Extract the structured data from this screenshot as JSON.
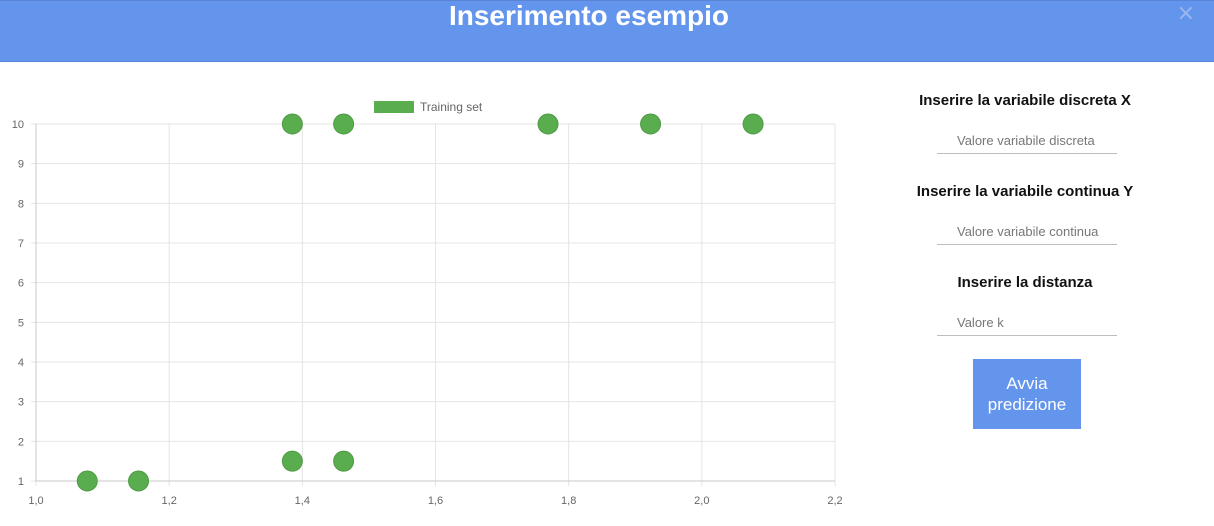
{
  "header": {
    "title": "Inserimento esempio",
    "close_label": "×",
    "color": "#6495ed"
  },
  "form": {
    "x_label": "Inserire la variabile discreta X",
    "x_placeholder": "Valore variabile discreta",
    "y_label": "Inserire la variabile continua Y",
    "y_placeholder": "Valore variabile continua",
    "k_label": "Inserire la distanza",
    "k_placeholder": "Valore k",
    "submit_label": "Avvia predizione"
  },
  "chart_data": {
    "type": "scatter",
    "series": [
      {
        "name": "Training set",
        "color": "#5aad4e",
        "points": [
          {
            "x": 1.077,
            "y": 1
          },
          {
            "x": 1.154,
            "y": 1
          },
          {
            "x": 1.385,
            "y": 1.5
          },
          {
            "x": 1.462,
            "y": 1.5
          },
          {
            "x": 1.385,
            "y": 10
          },
          {
            "x": 1.462,
            "y": 10
          },
          {
            "x": 1.769,
            "y": 10
          },
          {
            "x": 1.923,
            "y": 10
          },
          {
            "x": 2.077,
            "y": 10
          }
        ]
      }
    ],
    "x_ticks": [
      "1,0",
      "1,2",
      "1,4",
      "1,6",
      "1,8",
      "2,0",
      "2,2"
    ],
    "x_tick_values": [
      1.0,
      1.2,
      1.4,
      1.6,
      1.8,
      2.0,
      2.2
    ],
    "y_ticks": [
      "1",
      "2",
      "3",
      "4",
      "5",
      "6",
      "7",
      "8",
      "9",
      "10"
    ],
    "y_tick_values": [
      1,
      2,
      3,
      4,
      5,
      6,
      7,
      8,
      9,
      10
    ],
    "xlim": [
      1.0,
      2.2
    ],
    "ylim": [
      1,
      10
    ],
    "grid": true,
    "legend": "top"
  }
}
